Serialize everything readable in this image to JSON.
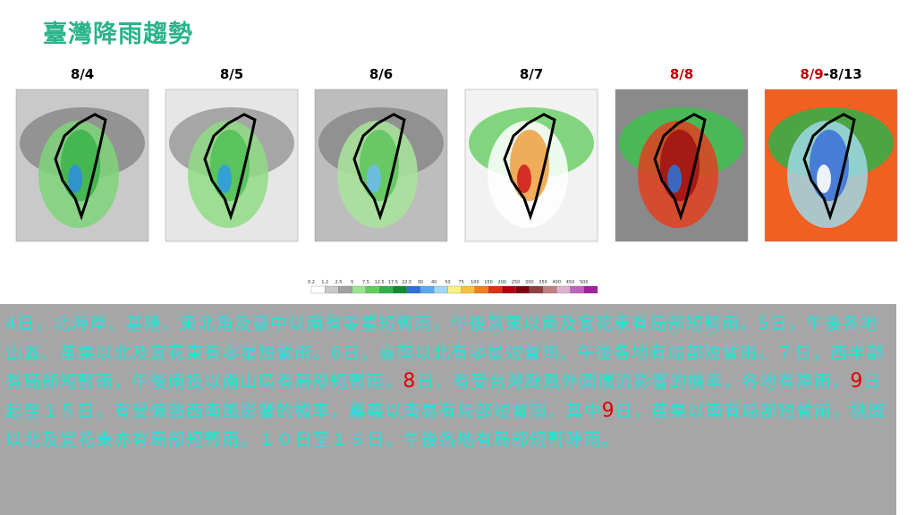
{
  "title": "臺灣降雨趨勢",
  "panels": [
    {
      "label": [
        {
          "text": "8/4",
          "highlight": false
        }
      ]
    },
    {
      "label": [
        {
          "text": "8/5",
          "highlight": false
        }
      ]
    },
    {
      "label": [
        {
          "text": "8/6",
          "highlight": false
        }
      ]
    },
    {
      "label": [
        {
          "text": "8/7",
          "highlight": false
        }
      ]
    },
    {
      "label": [
        {
          "text": "8/8",
          "highlight": true
        }
      ]
    },
    {
      "label": [
        {
          "text": "8/9",
          "highlight": true
        },
        {
          "text": "-8/13",
          "highlight": false
        }
      ]
    }
  ],
  "colorbar_ticks": [
    0.2,
    1.2,
    2.5,
    5,
    7.5,
    12.5,
    17.5,
    22.5,
    30,
    40,
    50,
    75,
    100,
    150,
    200,
    250,
    300,
    350,
    400,
    450,
    500
  ],
  "description": [
    {
      "text": "4日，北海岸、基隆、東北角及臺中以南有零星短暫雨，午後苗栗以南及宜花東有局部短暫雨。5日，午後各地山區、苗栗以北及宜花東有零星短暫雨。6日，臺南以北有零星短暫雨，午後各地有局部短暫雨。７日，西半部有局部短暫雨，午後南投以南山區有局部短暫雨。",
      "highlight": false
    },
    {
      "text": "8",
      "highlight": true
    },
    {
      "text": "日，有受台灣颱風外圍環流影響的機率，各地有降雨。",
      "highlight": false
    },
    {
      "text": "9",
      "highlight": true
    },
    {
      "text": "日起至１５日，有受偏強西南風影響的機率，嘉義以南易有局部短暫雨，其中",
      "highlight": false
    },
    {
      "text": "9",
      "highlight": true
    },
    {
      "text": "日，苗栗以南有局部短暫雨，桃園以北及宜花東亦有局部短暫雨。１０日至１５日，午後各地有局部短暫陣雨。",
      "highlight": false
    }
  ]
}
